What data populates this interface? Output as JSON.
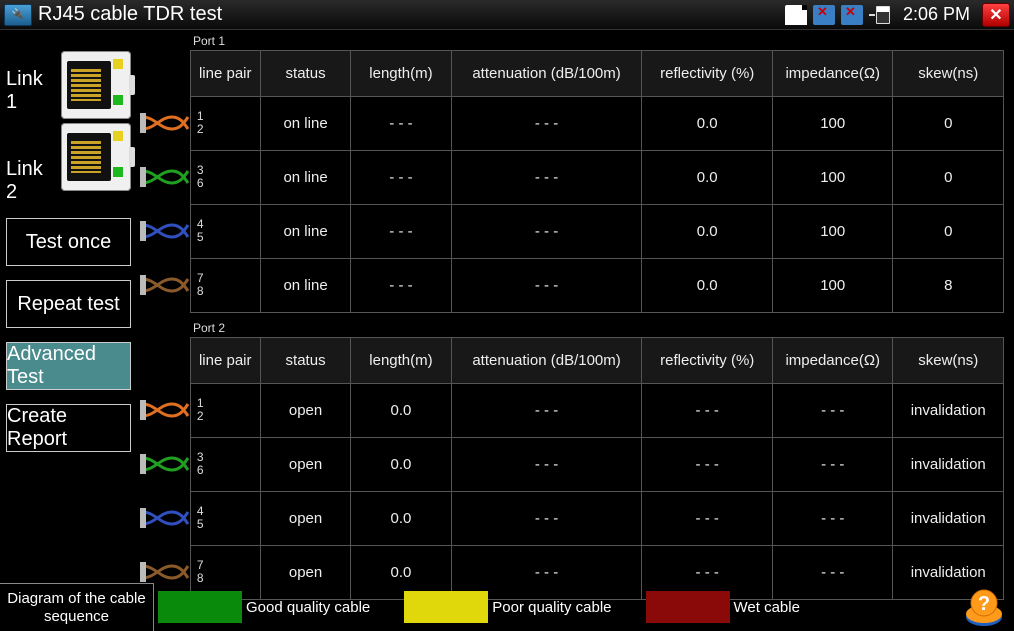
{
  "titlebar": {
    "title": "RJ45 cable TDR test",
    "clock": "2:06 PM"
  },
  "sidebar": {
    "link1": "Link 1",
    "link2": "Link 2",
    "buttons": {
      "test_once": "Test once",
      "repeat_test": "Repeat test",
      "advanced_test": "Advanced Test",
      "create_report": "Create Report"
    }
  },
  "headers": {
    "line_pair": "line pair",
    "status": "status",
    "length": "length(m)",
    "attenuation": "attenuation (dB/100m)",
    "reflectivity": "reflectivity (%)",
    "impedance": "impedance(Ω)",
    "skew": "skew(ns)"
  },
  "port1": {
    "label": "Port 1",
    "rows": [
      {
        "nums": "1\n2",
        "status": "on line",
        "length": "- - -",
        "atten": "- - -",
        "refl": "0.0",
        "imp": "100",
        "skew": "0",
        "colors": [
          "#e07020",
          "#e07020"
        ]
      },
      {
        "nums": "3\n6",
        "status": "on line",
        "length": "- - -",
        "atten": "- - -",
        "refl": "0.0",
        "imp": "100",
        "skew": "0",
        "colors": [
          "#20a020",
          "#20a020"
        ]
      },
      {
        "nums": "4\n5",
        "status": "on line",
        "length": "- - -",
        "atten": "- - -",
        "refl": "0.0",
        "imp": "100",
        "skew": "0",
        "colors": [
          "#3050c0",
          "#3050c0"
        ]
      },
      {
        "nums": "7\n8",
        "status": "on line",
        "length": "- - -",
        "atten": "- - -",
        "refl": "0.0",
        "imp": "100",
        "skew": "8",
        "colors": [
          "#8b5a2b",
          "#8b5a2b"
        ]
      }
    ]
  },
  "port2": {
    "label": "Port 2",
    "rows": [
      {
        "nums": "1\n2",
        "status": "open",
        "length": "0.0",
        "atten": "- - -",
        "refl": "- - -",
        "imp": "- - -",
        "skew": "invalidation",
        "colors": [
          "#e07020",
          "#e07020"
        ]
      },
      {
        "nums": "3\n6",
        "status": "open",
        "length": "0.0",
        "atten": "- - -",
        "refl": "- - -",
        "imp": "- - -",
        "skew": "invalidation",
        "colors": [
          "#20a020",
          "#20a020"
        ]
      },
      {
        "nums": "4\n5",
        "status": "open",
        "length": "0.0",
        "atten": "- - -",
        "refl": "- - -",
        "imp": "- - -",
        "skew": "invalidation",
        "colors": [
          "#3050c0",
          "#3050c0"
        ]
      },
      {
        "nums": "7\n8",
        "status": "open",
        "length": "0.0",
        "atten": "- - -",
        "refl": "- - -",
        "imp": "- - -",
        "skew": "invalidation",
        "colors": [
          "#8b5a2b",
          "#8b5a2b"
        ]
      }
    ]
  },
  "legend": {
    "caption": "Diagram of the cable sequence",
    "good": {
      "color": "#0a8a0a",
      "label": "Good quality cable"
    },
    "poor": {
      "color": "#e0d80a",
      "label": "Poor quality cable"
    },
    "wet": {
      "color": "#8a0a0a",
      "label": "Wet cable"
    }
  }
}
